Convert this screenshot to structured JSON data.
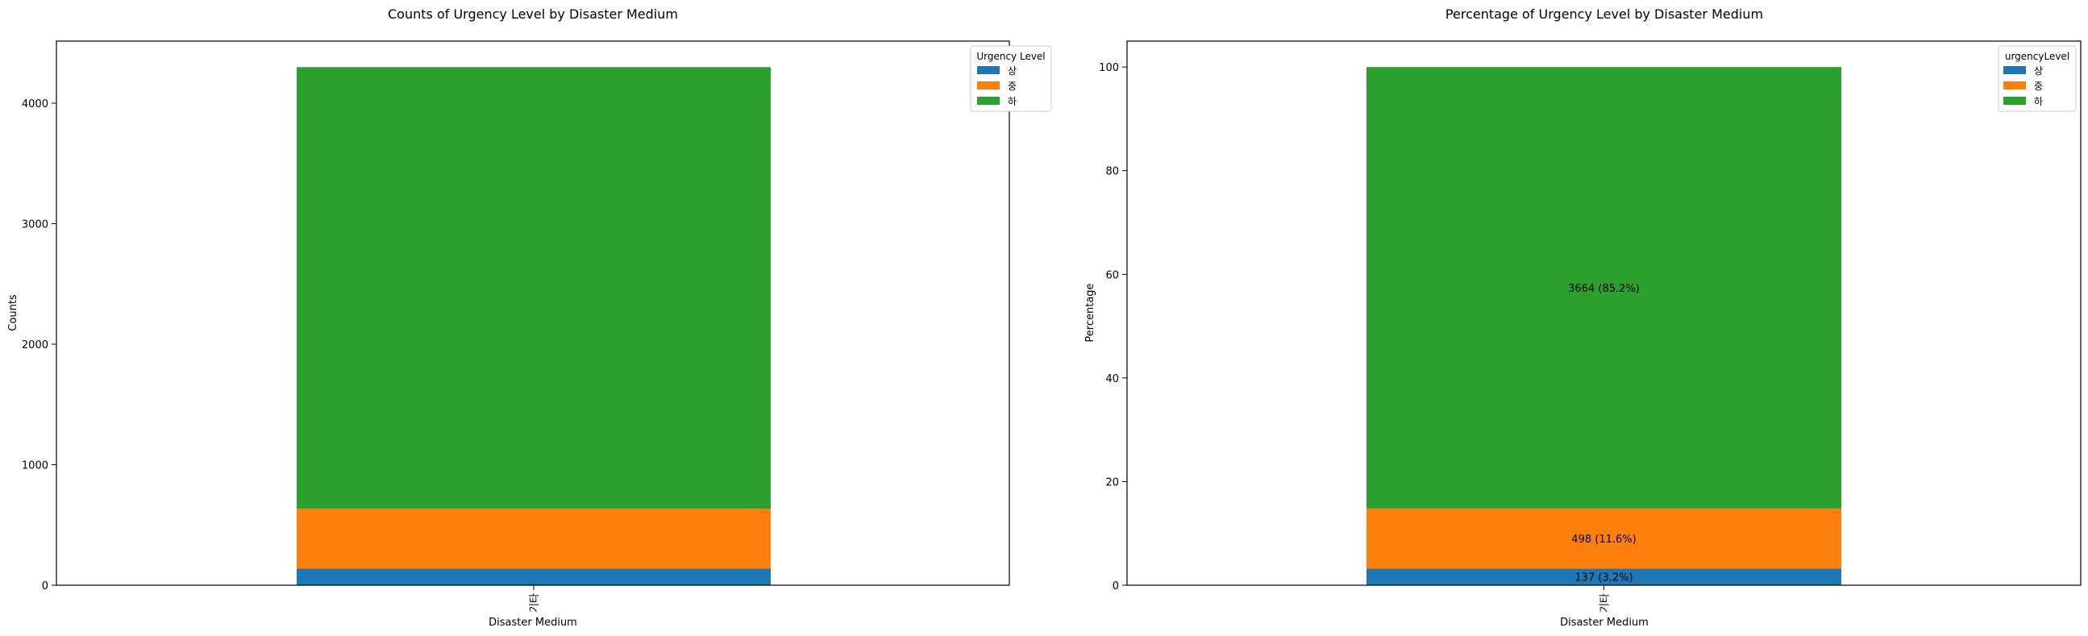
{
  "chart_data": [
    {
      "type": "bar",
      "stacked": true,
      "title": "Counts of Urgency Level by Disaster Medium",
      "xlabel": "Disaster Medium",
      "ylabel": "Counts",
      "categories": [
        "기타"
      ],
      "ylim": [
        0,
        4515
      ],
      "yticks": [
        0,
        1000,
        2000,
        3000,
        4000
      ],
      "legend": {
        "title": "Urgency Level",
        "placement": "top-right"
      },
      "series": [
        {
          "name": "상",
          "values": [
            137
          ],
          "color": "#1f77b4"
        },
        {
          "name": "중",
          "values": [
            498
          ],
          "color": "#ff7f0e"
        },
        {
          "name": "하",
          "values": [
            3664
          ],
          "color": "#2ca02c"
        }
      ],
      "data_labels": []
    },
    {
      "type": "bar",
      "stacked": true,
      "title": "Percentage of Urgency Level by Disaster Medium",
      "xlabel": "Disaster Medium",
      "ylabel": "Percentage",
      "categories": [
        "기타"
      ],
      "ylim": [
        0,
        105
      ],
      "yticks": [
        0,
        20,
        40,
        60,
        80,
        100
      ],
      "legend": {
        "title": "urgencyLevel",
        "placement": "top-right"
      },
      "series": [
        {
          "name": "상",
          "values": [
            3.2
          ],
          "color": "#1f77b4"
        },
        {
          "name": "중",
          "values": [
            11.6
          ],
          "color": "#ff7f0e"
        },
        {
          "name": "하",
          "values": [
            85.2
          ],
          "color": "#2ca02c"
        }
      ],
      "data_labels": [
        "137 (3.2%)",
        "498 (11.6%)",
        "3664 (85.2%)"
      ]
    }
  ]
}
